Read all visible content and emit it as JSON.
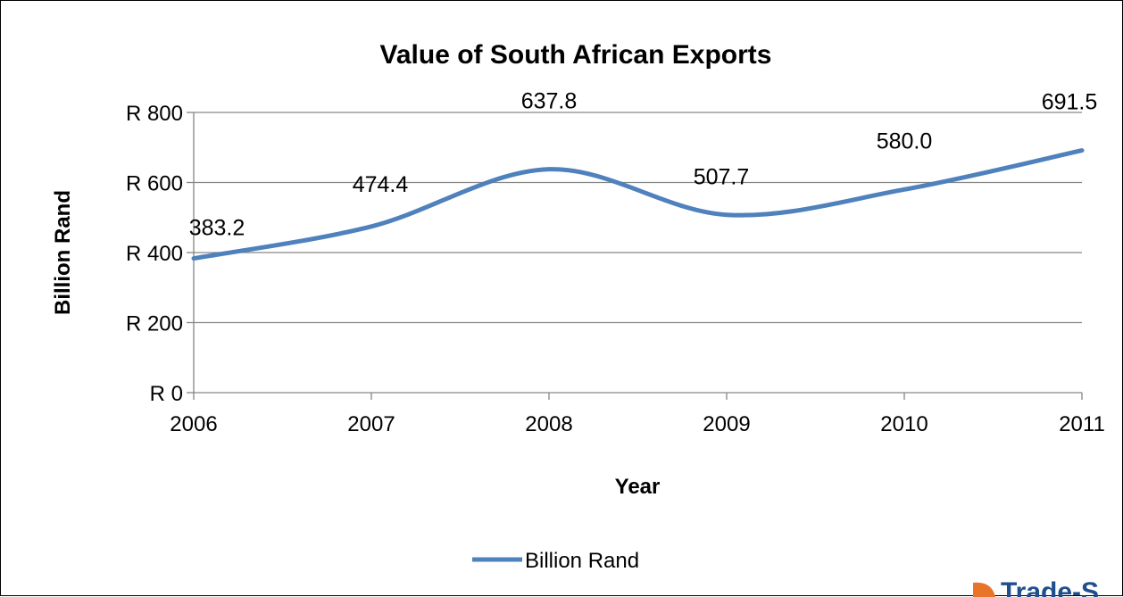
{
  "chart_data": {
    "type": "line",
    "title": "Value of South African Exports",
    "xlabel": "Year",
    "ylabel": "Billion Rand",
    "categories": [
      "2006",
      "2007",
      "2008",
      "2009",
      "2010",
      "2011"
    ],
    "series": [
      {
        "name": "Billion Rand",
        "values": [
          383.2,
          474.4,
          637.8,
          507.7,
          580.0,
          691.5
        ],
        "labels": [
          "383.2",
          "474.4",
          "637.8",
          "507.7",
          "580.0",
          "691.5"
        ],
        "color": "#4f81bd"
      }
    ],
    "ylim": [
      0,
      800
    ],
    "yticks": [
      0,
      200,
      400,
      600,
      800
    ],
    "ytick_labels": [
      "R 0",
      "R 200",
      "R 400",
      "R 600",
      "R 800"
    ],
    "grid": true,
    "smooth": true,
    "legend_position": "bottom"
  },
  "watermark": {
    "text": "Trade-S",
    "color": "#1f4e8c",
    "accent": "#e8742a"
  }
}
